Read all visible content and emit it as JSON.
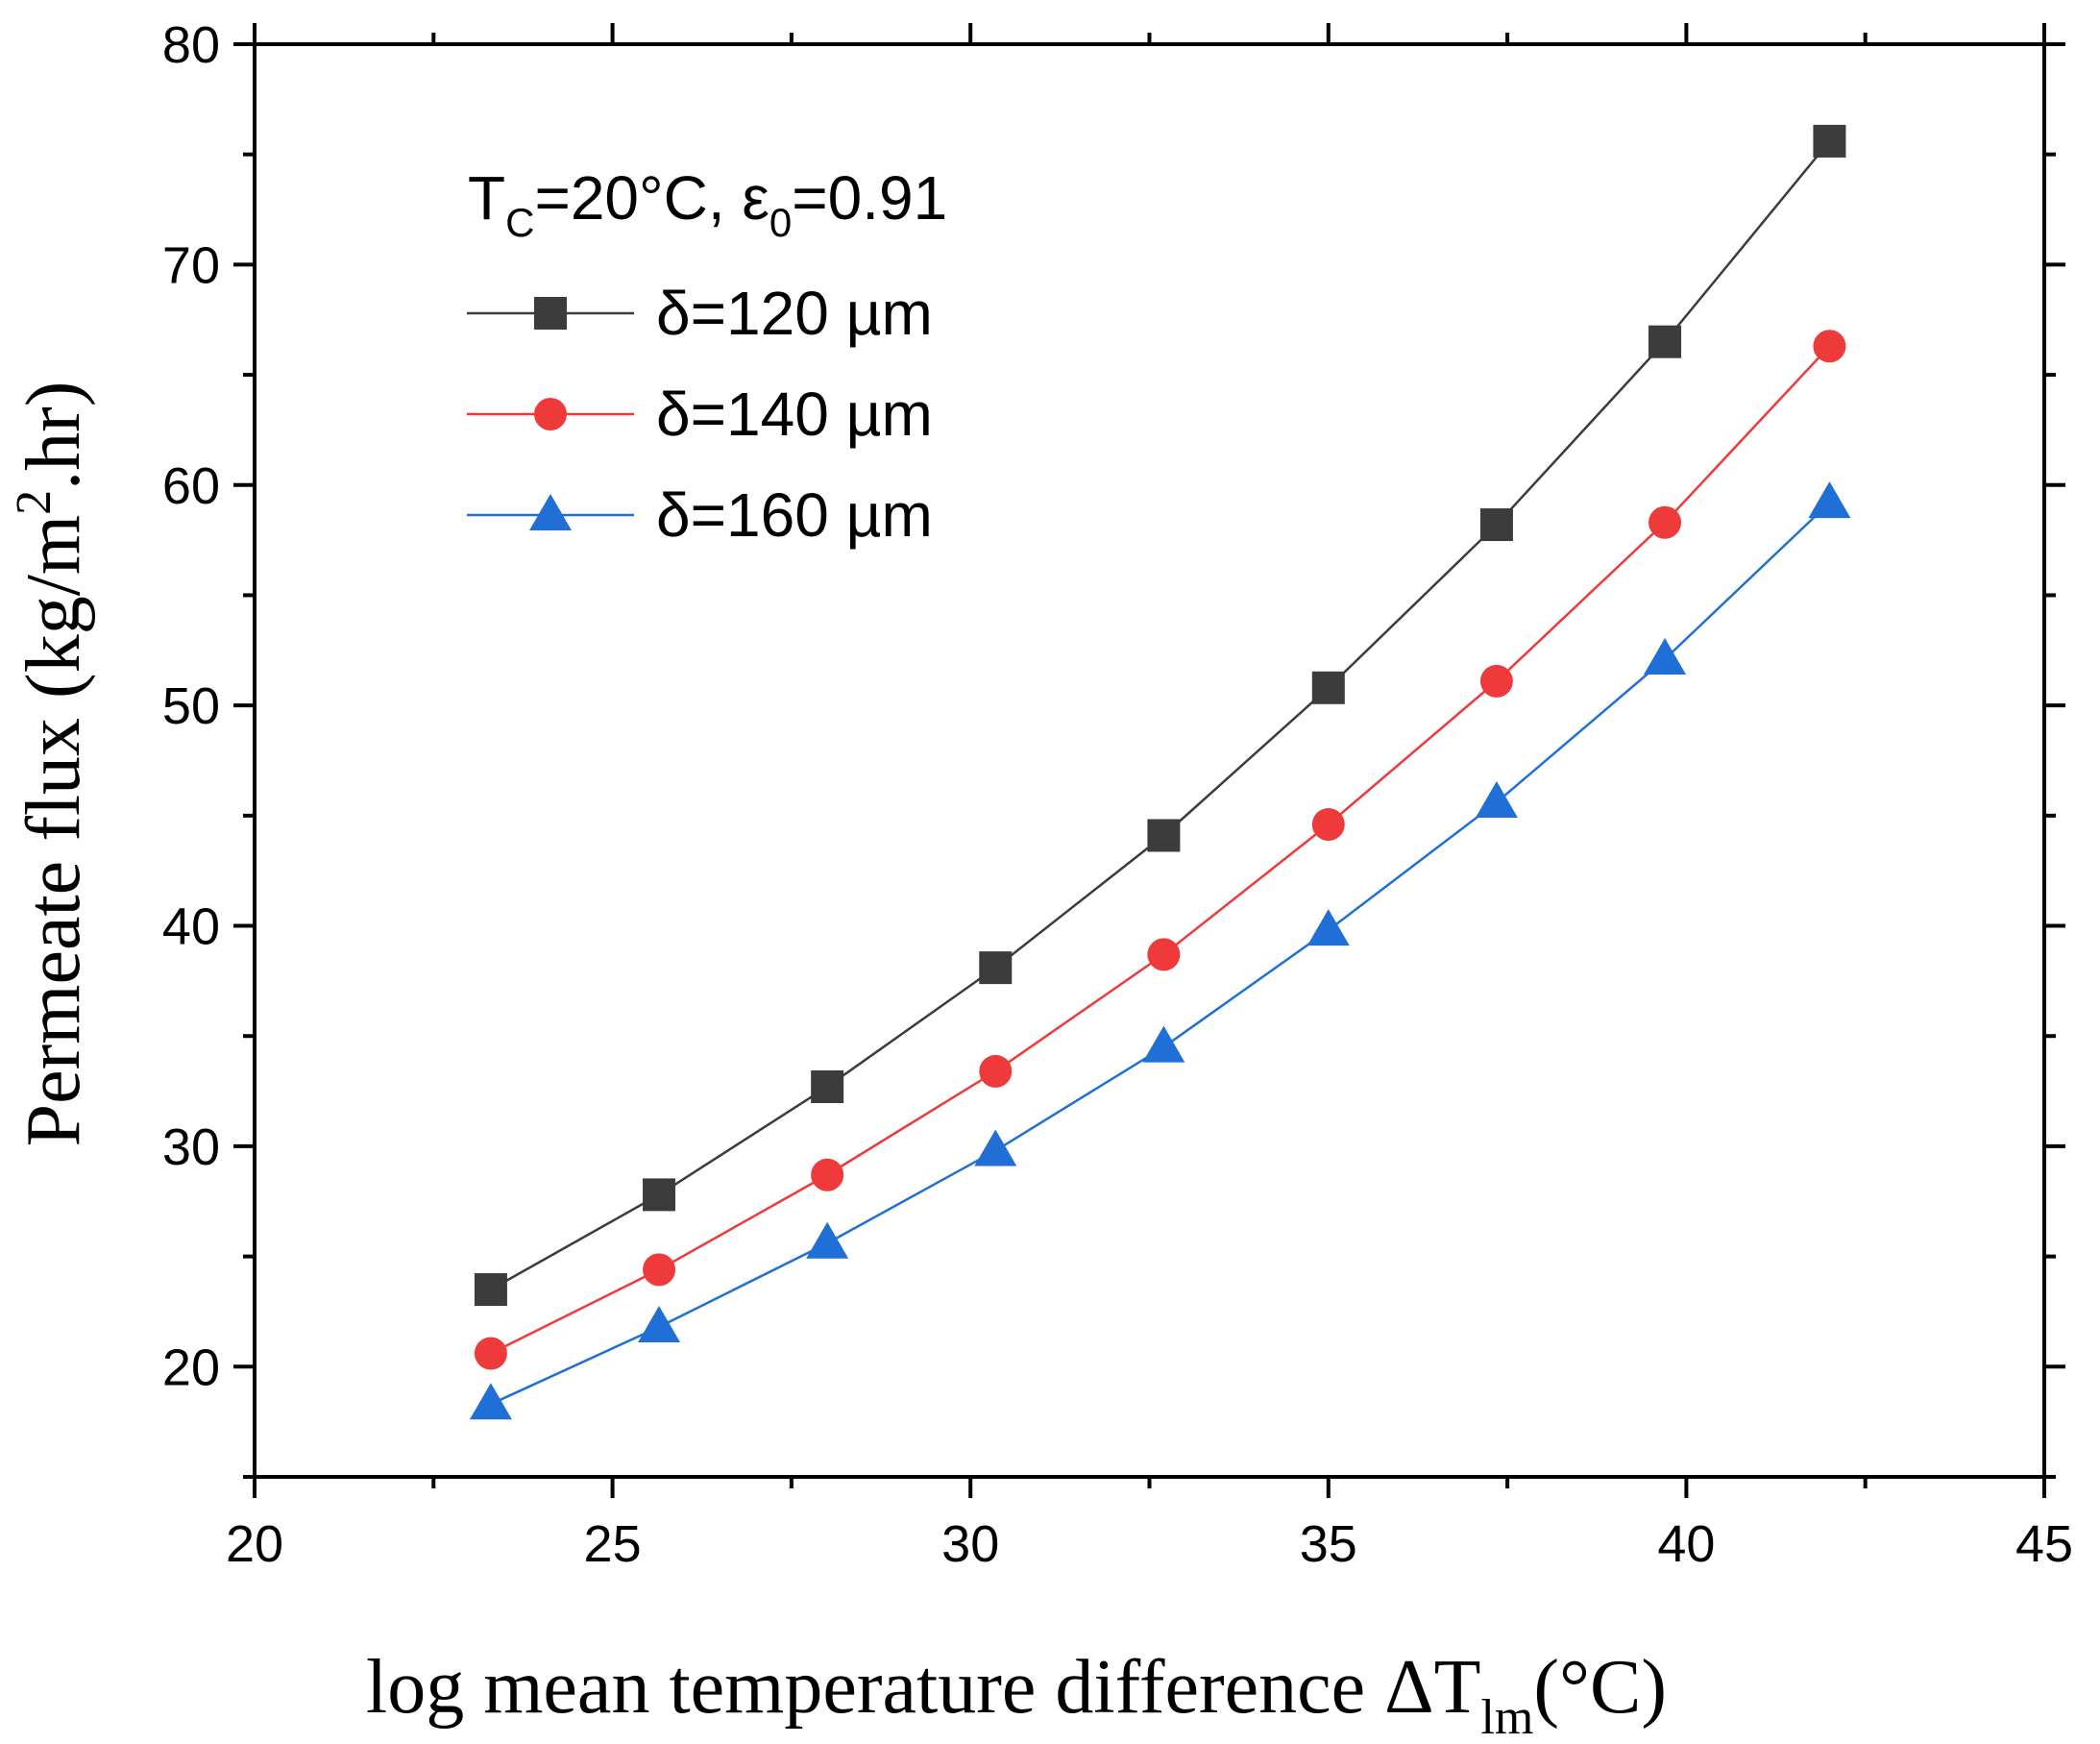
{
  "chart_data": {
    "type": "line",
    "title": "",
    "x": [
      23.3,
      25.65,
      28.0,
      30.35,
      32.7,
      35.0,
      37.35,
      39.7,
      42.0
    ],
    "series": [
      {
        "name": "δ=120 µm",
        "color": "#3c3c3c",
        "marker": "square",
        "values": [
          23.5,
          27.8,
          32.7,
          38.1,
          44.1,
          50.8,
          58.2,
          66.5,
          75.6
        ]
      },
      {
        "name": "δ=140 µm",
        "color": "#ee3a3a",
        "marker": "circle",
        "values": [
          20.6,
          24.4,
          28.7,
          33.4,
          38.7,
          44.6,
          51.1,
          58.3,
          66.3
        ]
      },
      {
        "name": "δ=160 µm",
        "color": "#1f6fd6",
        "marker": "triangle",
        "values": [
          18.3,
          21.8,
          25.6,
          29.8,
          34.5,
          39.8,
          45.6,
          52.1,
          59.2
        ]
      }
    ],
    "xlim": [
      20,
      45
    ],
    "ylim": [
      15,
      80
    ],
    "xticks": [
      20,
      25,
      30,
      35,
      40,
      45
    ],
    "yticks": [
      20,
      30,
      40,
      50,
      60,
      70,
      80
    ],
    "xlabel": {
      "text": "log mean temperature difference ΔT",
      "sub": "lm",
      "suffix": "(°C)"
    },
    "ylabel": {
      "text": "Permeate flux (kg/m",
      "sup": "2",
      "suffix": ".hr)"
    },
    "legend": {
      "placement": "top-left",
      "header": {
        "t": "T",
        "t_sub": "C",
        "mid": "=20°C, ε",
        "eps_sub": "0",
        "tail": "=0.91"
      }
    },
    "grid": false
  }
}
